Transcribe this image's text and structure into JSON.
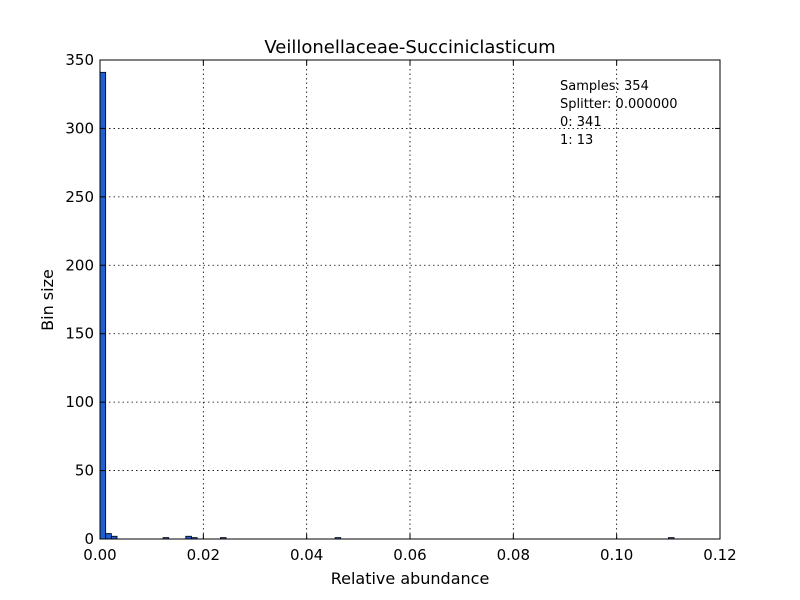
{
  "chart_data": {
    "type": "bar",
    "title": "Veillonellaceae-Succiniclasticum",
    "xlabel": "Relative abundance",
    "ylabel": "Bin size",
    "xlim": [
      0.0,
      0.12
    ],
    "ylim": [
      0,
      350
    ],
    "xticks": [
      "0.00",
      "0.02",
      "0.04",
      "0.06",
      "0.08",
      "0.10",
      "0.12"
    ],
    "yticks": [
      "0",
      "50",
      "100",
      "150",
      "200",
      "250",
      "300",
      "350"
    ],
    "grid": true,
    "bar_color": "#1f5fd0",
    "bars": [
      {
        "x0": 0.0,
        "x1": 0.0011,
        "count": 341
      },
      {
        "x0": 0.0011,
        "x1": 0.0022,
        "count": 4
      },
      {
        "x0": 0.0022,
        "x1": 0.0033,
        "count": 2
      },
      {
        "x0": 0.0122,
        "x1": 0.0133,
        "count": 1
      },
      {
        "x0": 0.0166,
        "x1": 0.0177,
        "count": 2
      },
      {
        "x0": 0.0177,
        "x1": 0.0188,
        "count": 1
      },
      {
        "x0": 0.0233,
        "x1": 0.0244,
        "count": 1
      },
      {
        "x0": 0.0455,
        "x1": 0.0466,
        "count": 1
      },
      {
        "x0": 0.11,
        "x1": 0.1111,
        "count": 1
      }
    ],
    "annotations": [
      "Samples: 354",
      "Splitter: 0.000000",
      "0: 341",
      "1: 13"
    ]
  }
}
